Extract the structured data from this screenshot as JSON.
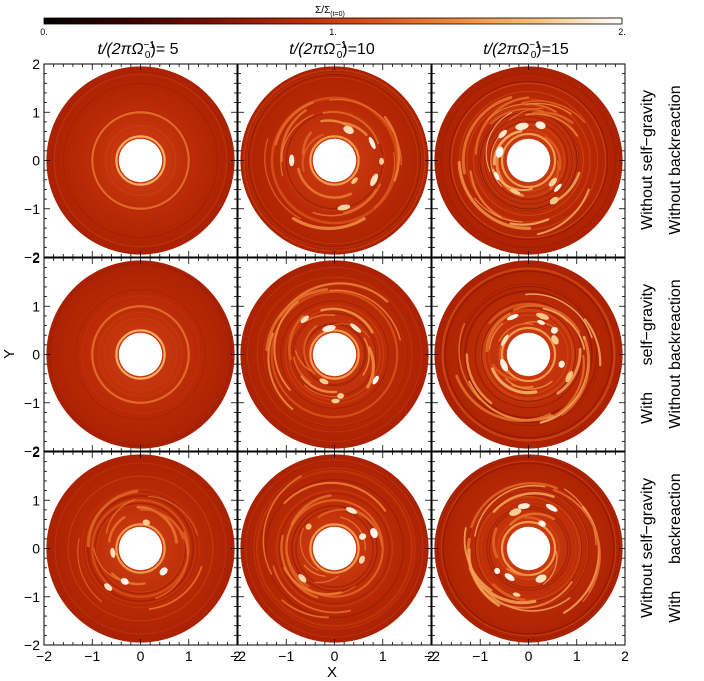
{
  "colorbar": {
    "title": "Σ/Σ",
    "title_sub": "(t=0)",
    "ticks": [
      "0.",
      "1.",
      "2."
    ],
    "range": [
      0,
      2
    ],
    "colors": [
      "#000000",
      "#3a0000",
      "#7a0f00",
      "#b52a05",
      "#d9531a",
      "#f08a3c",
      "#f9c17a",
      "#ffffff"
    ]
  },
  "column_titles": [
    {
      "prefix": "t/(2πΩ",
      "sub": "0",
      "sup": "−1",
      "suffix": ")= 5"
    },
    {
      "prefix": "t/(2πΩ",
      "sub": "0",
      "sup": "−1",
      "suffix": ")=10"
    },
    {
      "prefix": "t/(2πΩ",
      "sub": "0",
      "sup": "−1",
      "suffix": ")=15"
    }
  ],
  "row_labels": [
    {
      "line1": "Without self−gravity",
      "line2": "Without backreaction"
    },
    {
      "line1": "With      self−gravity",
      "line2": "Without backreaction"
    },
    {
      "line1": "Without self−gravity",
      "line2": "With      backreaction"
    }
  ],
  "axes": {
    "xlabel": "X",
    "ylabel": "Y",
    "xticks": [
      "−2",
      "−1",
      "0",
      "1",
      "2"
    ],
    "yticks": [
      "2",
      "1",
      "0",
      "−1",
      "−2"
    ],
    "xlim": [
      -2,
      2
    ],
    "ylim": [
      -2,
      2
    ]
  },
  "chart_data": {
    "type": "heatmap",
    "title": "",
    "xlabel": "X",
    "ylabel": "Y",
    "xlim": [
      -2,
      2
    ],
    "ylim": [
      -2,
      2
    ],
    "colorbar_range": [
      0,
      2
    ],
    "disk_inner_radius": 0.45,
    "disk_outer_radius": 1.95,
    "panels": [
      {
        "row": 0,
        "col": 0,
        "time": 5,
        "self_gravity": false,
        "backreaction": false,
        "rings": [
          {
            "r": 0.5,
            "v": 1.6
          },
          {
            "r": 1.0,
            "v": 1.25
          }
        ],
        "vortex_amp": 0.0
      },
      {
        "row": 0,
        "col": 1,
        "time": 10,
        "self_gravity": false,
        "backreaction": false,
        "rings": [
          {
            "r": 0.5,
            "v": 1.5
          },
          {
            "r": 1.3,
            "v": 1.1
          }
        ],
        "vortex_amp": 0.6
      },
      {
        "row": 0,
        "col": 2,
        "time": 15,
        "self_gravity": false,
        "backreaction": false,
        "rings": [
          {
            "r": 0.55,
            "v": 1.5
          }
        ],
        "vortex_amp": 1.0
      },
      {
        "row": 1,
        "col": 0,
        "time": 5,
        "self_gravity": true,
        "backreaction": false,
        "rings": [
          {
            "r": 0.5,
            "v": 1.6
          },
          {
            "r": 1.0,
            "v": 1.25
          }
        ],
        "vortex_amp": 0.0
      },
      {
        "row": 1,
        "col": 1,
        "time": 10,
        "self_gravity": true,
        "backreaction": false,
        "rings": [
          {
            "r": 0.5,
            "v": 1.5
          },
          {
            "r": 1.3,
            "v": 1.1
          }
        ],
        "vortex_amp": 0.6
      },
      {
        "row": 1,
        "col": 2,
        "time": 15,
        "self_gravity": true,
        "backreaction": false,
        "rings": [
          {
            "r": 0.55,
            "v": 1.5
          }
        ],
        "vortex_amp": 1.0
      },
      {
        "row": 2,
        "col": 0,
        "time": 5,
        "self_gravity": false,
        "backreaction": true,
        "rings": [
          {
            "r": 0.5,
            "v": 1.5
          },
          {
            "r": 1.0,
            "v": 1.1
          }
        ],
        "vortex_amp": 0.3
      },
      {
        "row": 2,
        "col": 1,
        "time": 10,
        "self_gravity": false,
        "backreaction": true,
        "rings": [
          {
            "r": 0.5,
            "v": 1.5
          },
          {
            "r": 1.0,
            "v": 1.2
          }
        ],
        "vortex_amp": 0.5
      },
      {
        "row": 2,
        "col": 2,
        "time": 15,
        "self_gravity": false,
        "backreaction": true,
        "rings": [
          {
            "r": 0.55,
            "v": 1.5
          }
        ],
        "vortex_amp": 0.8
      }
    ]
  }
}
